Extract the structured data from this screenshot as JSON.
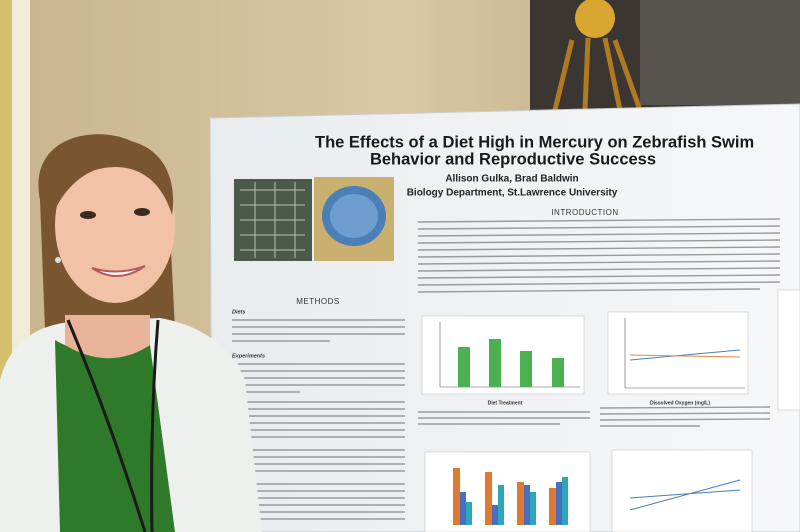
{
  "poster": {
    "title_line1": "The Effects of a Diet High in Mercury on Zebrafish Swim",
    "title_line2": "Behavior and Reproductive Success",
    "authors": "Allison Gulka, Brad Baldwin",
    "affiliation": "Biology Department, St.Lawrence University",
    "sections": [
      "INTRODUCTION",
      "METHODS"
    ],
    "subheadings": [
      "Diets",
      "Experiments"
    ],
    "chart_axis_labels": [
      "Diet Treatment",
      "Dissolved Oxygen (mg/L)"
    ]
  }
}
